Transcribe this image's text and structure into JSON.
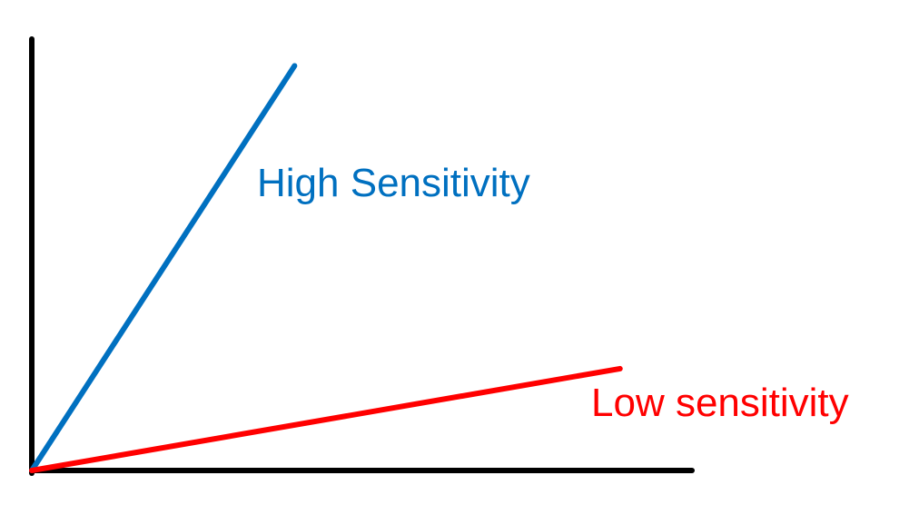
{
  "chart_data": {
    "type": "line",
    "title": "",
    "xlabel": "",
    "ylabel": "",
    "xlim": [
      0,
      100
    ],
    "ylim": [
      0,
      100
    ],
    "grid": false,
    "legend": "none",
    "axis_color": "#000000",
    "series": [
      {
        "label": "High Sensitivity",
        "color": "#0070C0",
        "x": [
          0,
          39.8
        ],
        "y": [
          0,
          93.8
        ]
      },
      {
        "label": "Low sensitivity",
        "color": "#FF0000",
        "x": [
          0,
          89.1
        ],
        "y": [
          0,
          23.6
        ]
      }
    ]
  }
}
